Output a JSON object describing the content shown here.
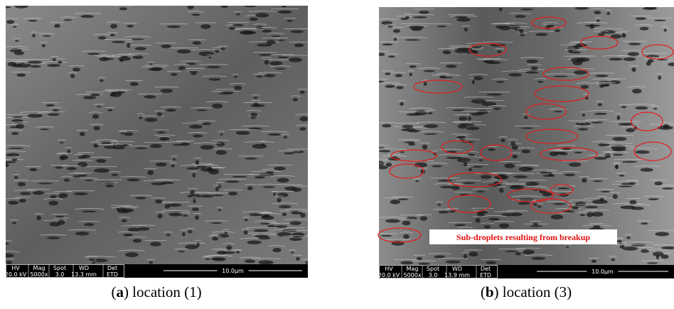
{
  "panels": [
    {
      "info_bar": {
        "headers": [
          "HV",
          "Mag",
          "Spot",
          "WD",
          "Det"
        ],
        "values": [
          "20.0 kV",
          "5000x",
          "3.0",
          "13.3 mm",
          "ETD"
        ],
        "scale": "10.0µm"
      },
      "caption": [
        "(",
        "a",
        ") location (1)"
      ]
    },
    {
      "info_bar": {
        "headers": [
          "HV",
          "Mag",
          "Spot",
          "WD",
          "Det"
        ],
        "values": [
          "20.0 kV",
          "5000x",
          "3.0",
          "13.9 mm",
          "ETD"
        ],
        "scale": "10.0µm"
      },
      "annotation": "Sub-droplets resulting from breakup",
      "caption": [
        "(",
        "b",
        ") location (3)"
      ]
    }
  ]
}
